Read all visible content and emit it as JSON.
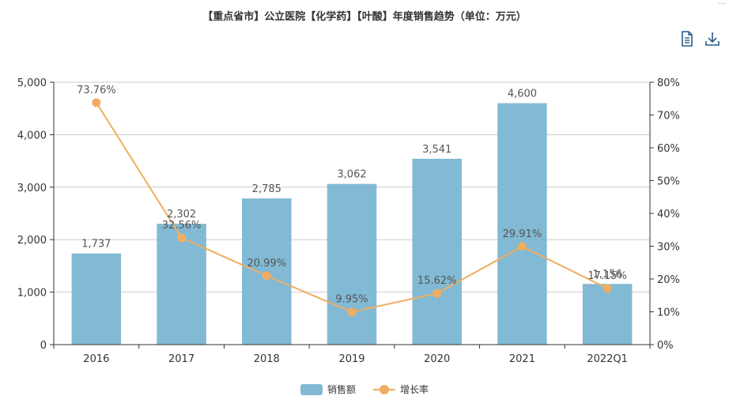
{
  "title": "【重点省市】公立医院【化学药】【叶酸】年度销售趋势（单位：万元）",
  "toolbar": {
    "data_view_icon": "document-icon",
    "download_icon": "download-icon"
  },
  "legend": {
    "sales_label": "销售额",
    "growth_label": "增长率"
  },
  "colors": {
    "bar": "#82b9d4",
    "line": "#f0ad62",
    "axis": "#333333",
    "grid": "#cccccc",
    "label": "#555555"
  },
  "chart_data": {
    "type": "bar",
    "title": "【重点省市】公立医院【化学药】【叶酸】年度销售趋势（单位：万元）",
    "categories": [
      "2016",
      "2017",
      "2018",
      "2019",
      "2020",
      "2021",
      "2022Q1"
    ],
    "series": [
      {
        "name": "销售额",
        "type": "bar",
        "axis": "left",
        "values": [
          1737,
          2302,
          2785,
          3062,
          3541,
          4600,
          1156
        ],
        "labels": [
          "1,737",
          "2,302",
          "2,785",
          "3,062",
          "3,541",
          "4,600",
          "1,156"
        ]
      },
      {
        "name": "增长率",
        "type": "line",
        "axis": "right",
        "values": [
          73.76,
          32.56,
          20.99,
          9.95,
          15.62,
          29.91,
          17.15
        ],
        "labels": [
          "73.76%",
          "32.56%",
          "20.99%",
          "9.95%",
          "15.62%",
          "29.91%",
          "17.15%"
        ]
      }
    ],
    "y_left": {
      "ylim": [
        0,
        5000
      ],
      "ticks": [
        "0",
        "1,000",
        "2,000",
        "3,000",
        "4,000",
        "5,000"
      ]
    },
    "y_right": {
      "ylim": [
        0,
        80
      ],
      "ticks": [
        "0%",
        "10%",
        "20%",
        "30%",
        "40%",
        "50%",
        "60%",
        "70%",
        "80%"
      ]
    },
    "grid": true,
    "legend_position": "bottom-center"
  }
}
